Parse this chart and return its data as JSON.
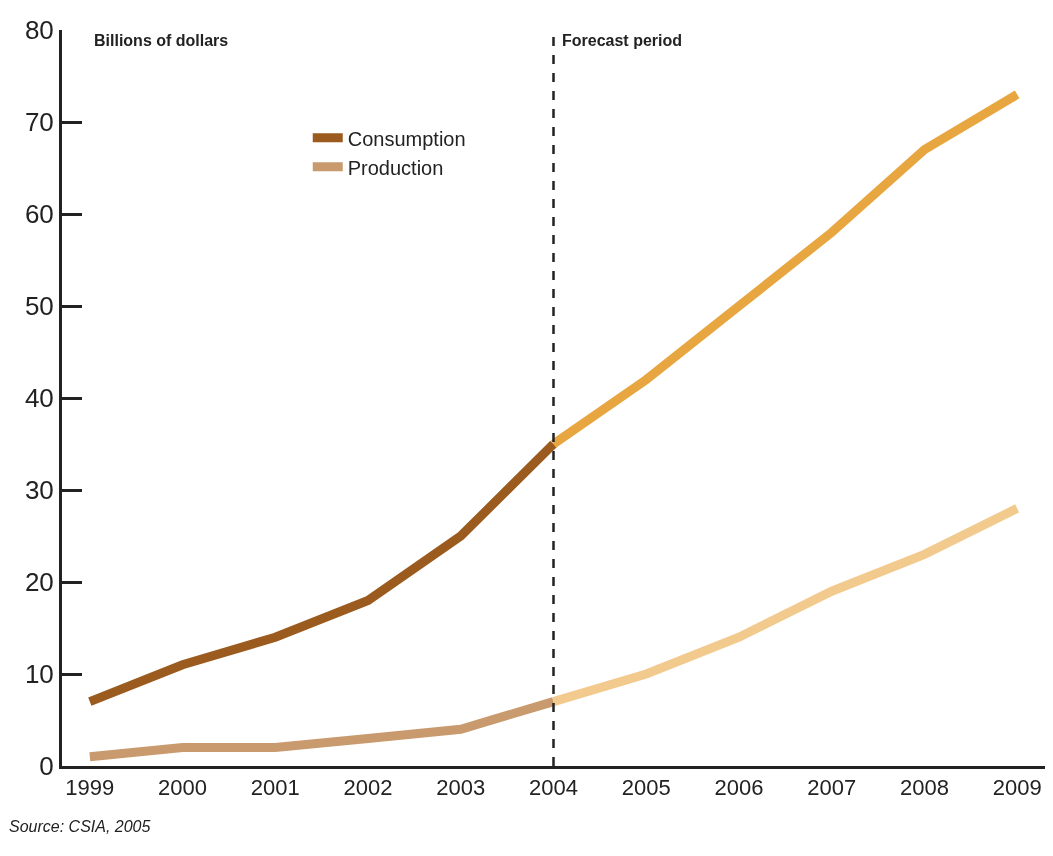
{
  "chart_data": {
    "type": "line",
    "ylabel": "Billions of dollars",
    "categories": [
      "1999",
      "2000",
      "2001",
      "2002",
      "2003",
      "2004",
      "2005",
      "2006",
      "2007",
      "2008",
      "2009"
    ],
    "series": [
      {
        "name": "Consumption",
        "color": "#9b5a1e",
        "values": [
          7,
          11,
          14,
          18,
          25,
          35,
          null,
          null,
          null,
          null,
          null
        ]
      },
      {
        "name": "Production",
        "color": "#c99a6e",
        "values": [
          1,
          2,
          2,
          3,
          4,
          7,
          null,
          null,
          null,
          null,
          null
        ]
      },
      {
        "color": "#e8a640",
        "values": [
          null,
          null,
          null,
          null,
          null,
          35,
          42,
          50,
          58,
          67,
          73
        ]
      },
      {
        "color": "#f2ca8e",
        "values": [
          null,
          null,
          null,
          null,
          null,
          7,
          10,
          14,
          19,
          23,
          28
        ]
      }
    ],
    "ylim": [
      0,
      80
    ],
    "yticks": [
      0,
      10,
      20,
      30,
      40,
      50,
      60,
      70,
      80
    ],
    "ref_lines": [
      {
        "axis": "x",
        "value": "2004",
        "label": "Forecast period",
        "color": "#222222",
        "line_style": "dashed"
      }
    ],
    "annotations": [
      "Source: CSIA, 2005"
    ],
    "legend": "top left",
    "marker": "none",
    "line_style": "solid"
  }
}
